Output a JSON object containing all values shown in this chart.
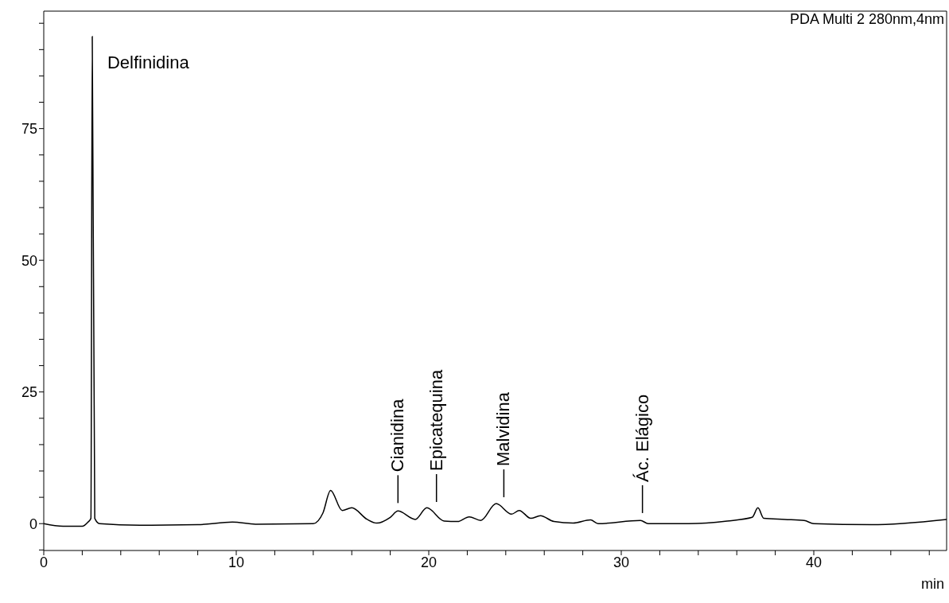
{
  "chart_data": {
    "type": "line",
    "xlabel": "min",
    "color": "#000000",
    "marker": "none",
    "line_style": "solid",
    "x": [
      0,
      1,
      2,
      2.3,
      2.45,
      2.52,
      2.65,
      2.9,
      5,
      8,
      9.8,
      11,
      14,
      14.5,
      14.9,
      15.5,
      16,
      16.8,
      17.3,
      18,
      18.4,
      19.3,
      19.9,
      20.8,
      21.5,
      22.1,
      22.7,
      23.5,
      24.3,
      24.7,
      25.3,
      25.8,
      26.5,
      27.5,
      28.4,
      28.8,
      31,
      31.4,
      33.5,
      35.5,
      36.8,
      37.1,
      37.4,
      38.5,
      39.5,
      40,
      43,
      46.9
    ],
    "values": [
      0,
      -0.5,
      -0.5,
      0.3,
      1,
      92.5,
      1,
      0,
      -0.3,
      -0.2,
      0.3,
      -0.1,
      0,
      2,
      6.3,
      2.5,
      3,
      0.8,
      0.1,
      1.2,
      2.4,
      0.8,
      3,
      0.5,
      0.4,
      1.3,
      0.6,
      3.8,
      1.8,
      2.5,
      1,
      1.5,
      0.4,
      0.1,
      0.7,
      0,
      0.6,
      0,
      0,
      0.5,
      1.2,
      3,
      1,
      0.8,
      0.6,
      0,
      -0.2,
      0.8
    ],
    "xlim": [
      0,
      46.9
    ],
    "ylim": [
      -5.1,
      97.3
    ],
    "xticks": [
      0,
      {
        "value": 2,
        "label": null
      },
      {
        "value": 4,
        "label": null
      },
      {
        "value": 6,
        "label": null
      },
      {
        "value": 8,
        "label": null
      },
      10,
      {
        "value": 12,
        "label": null
      },
      {
        "value": 14,
        "label": null
      },
      {
        "value": 16,
        "label": null
      },
      {
        "value": 18,
        "label": null
      },
      20,
      {
        "value": 22,
        "label": null
      },
      {
        "value": 24,
        "label": null
      },
      {
        "value": 26,
        "label": null
      },
      {
        "value": 28,
        "label": null
      },
      30,
      {
        "value": 32,
        "label": null
      },
      {
        "value": 34,
        "label": null
      },
      {
        "value": 36,
        "label": null
      },
      {
        "value": 38,
        "label": null
      },
      40,
      {
        "value": 42,
        "label": null
      },
      {
        "value": 44,
        "label": null
      },
      {
        "value": 46,
        "label": null
      }
    ],
    "yticks": [
      {
        "value": -5,
        "label": null
      },
      0,
      {
        "value": 5,
        "label": null
      },
      {
        "value": 10,
        "label": null
      },
      {
        "value": 15,
        "label": null
      },
      {
        "value": 20,
        "label": null
      },
      25,
      {
        "value": 30,
        "label": null
      },
      {
        "value": 35,
        "label": null
      },
      {
        "value": 40,
        "label": null
      },
      {
        "value": 45,
        "label": null
      },
      50,
      {
        "value": 55,
        "label": null
      },
      {
        "value": 60,
        "label": null
      },
      {
        "value": 65,
        "label": null
      },
      {
        "value": 70,
        "label": null
      },
      75,
      {
        "value": 80,
        "label": null
      },
      {
        "value": 85,
        "label": null
      },
      {
        "value": 90,
        "label": null
      },
      {
        "value": 95,
        "label": null
      }
    ],
    "annotations": [
      {
        "text": "Delfinidina",
        "x": 2.52,
        "y": 92.5
      },
      {
        "text": "Cianidina",
        "x": 18.4,
        "y": 2.4
      },
      {
        "text": "Epicatequina",
        "x": 20.4,
        "y": 2.6
      },
      {
        "text": "Malvidina",
        "x": 23.9,
        "y": 3.5
      },
      {
        "text": "Ác. Elágico",
        "x": 31.1,
        "y": 0.5
      },
      "PDA Multi 2 280nm,4nm"
    ]
  }
}
